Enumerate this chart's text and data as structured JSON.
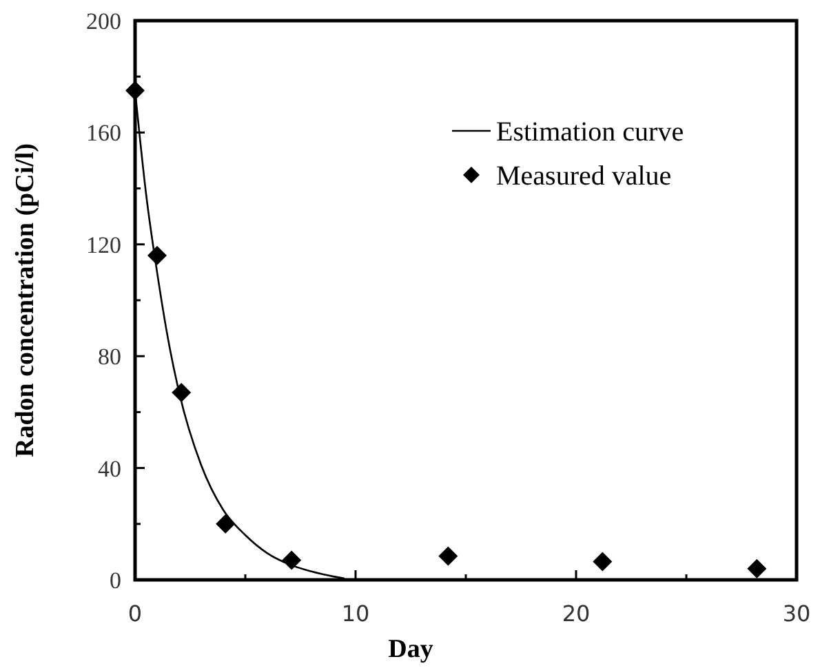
{
  "chart_data": {
    "type": "scatter",
    "xlabel": "Day",
    "ylabel": "Radon concentration (pCi/l)",
    "xlim": [
      0,
      30
    ],
    "ylim": [
      0,
      200
    ],
    "xticks": [
      0,
      {
        "value": 5,
        "label": null
      },
      10,
      {
        "value": 15,
        "label": null
      },
      20,
      {
        "value": 25,
        "label": null
      },
      30
    ],
    "yticks": [
      0,
      {
        "value": 20,
        "label": null
      },
      40,
      {
        "value": 60,
        "label": null
      },
      80,
      {
        "value": 100,
        "label": null
      },
      120,
      {
        "value": 140,
        "label": null
      },
      160,
      {
        "value": 180,
        "label": null
      },
      200
    ],
    "grid": false,
    "legend": "top right",
    "series": [
      {
        "name": "Estimation curve",
        "type": "line",
        "color": "#000000",
        "marker": "none",
        "line_style": "solid",
        "x": [
          0,
          0.5,
          1,
          1.5,
          2,
          3,
          4,
          5,
          6,
          7,
          8,
          9,
          9.5
        ],
        "values": [
          175,
          138,
          110,
          86,
          67,
          41,
          25,
          16,
          9.5,
          5.5,
          3,
          1.2,
          0.5
        ]
      },
      {
        "name": "Measured value",
        "color": "#000000",
        "marker": "diamond",
        "x": [
          0,
          1,
          2.1,
          4.1,
          7.1,
          14.2,
          21.2,
          28.2
        ],
        "values": [
          175,
          116,
          67,
          20,
          7,
          8.5,
          6.5,
          4
        ]
      }
    ]
  }
}
